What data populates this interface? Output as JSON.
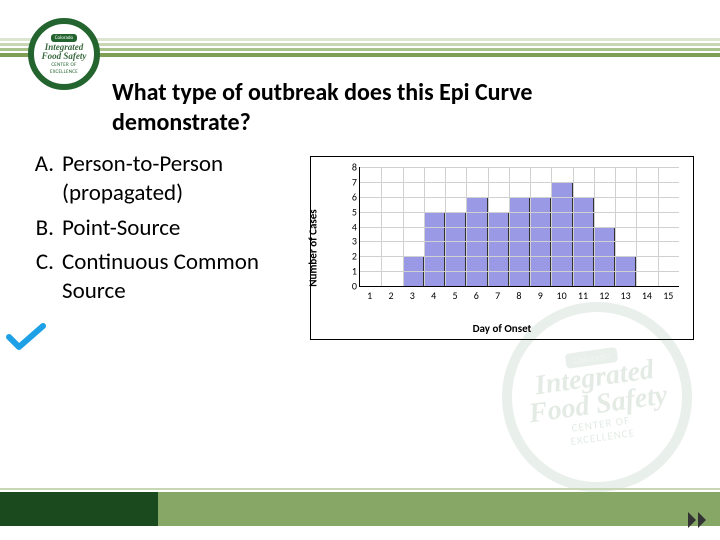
{
  "logo": {
    "top_band": "Colorado",
    "main1": "Integrated",
    "main2": "Food Safety",
    "sub1": "CENTER OF",
    "sub2": "EXCELLENCE"
  },
  "title": "What type of outbreak does this Epi Curve demonstrate?",
  "options": [
    {
      "letter": "A.",
      "text": "Person-to-Person (propagated)"
    },
    {
      "letter": "B.",
      "text": "Point-Source"
    },
    {
      "letter": "C.",
      "text": "Continuous Common Source"
    }
  ],
  "correct_index": 2,
  "chart": {
    "type": "bar",
    "ylabel": "Number of Cases",
    "xlabel": "Day of Onset",
    "ylim": [
      0,
      8
    ],
    "ytick_step": 1,
    "categories": [
      1,
      2,
      3,
      4,
      5,
      6,
      7,
      8,
      9,
      10,
      11,
      12,
      13,
      14,
      15
    ],
    "values": [
      0,
      0,
      2,
      5,
      5,
      6,
      5,
      6,
      6,
      7,
      6,
      4,
      2,
      0,
      0
    ],
    "bar_color": "#9999e6",
    "bar_border": "#333333",
    "grid_color": "#d0d0d0",
    "background_color": "#ffffff",
    "label_fontsize": 11,
    "tick_fontsize": 10
  },
  "colors": {
    "brand_dark_green": "#1a4a1e",
    "brand_mid_green": "#87a766",
    "stripe_colors": [
      "#dce5d0",
      "#c7d6b3",
      "#a9c18a",
      "#7fa054"
    ],
    "checkmark": "#1ea0e6"
  }
}
